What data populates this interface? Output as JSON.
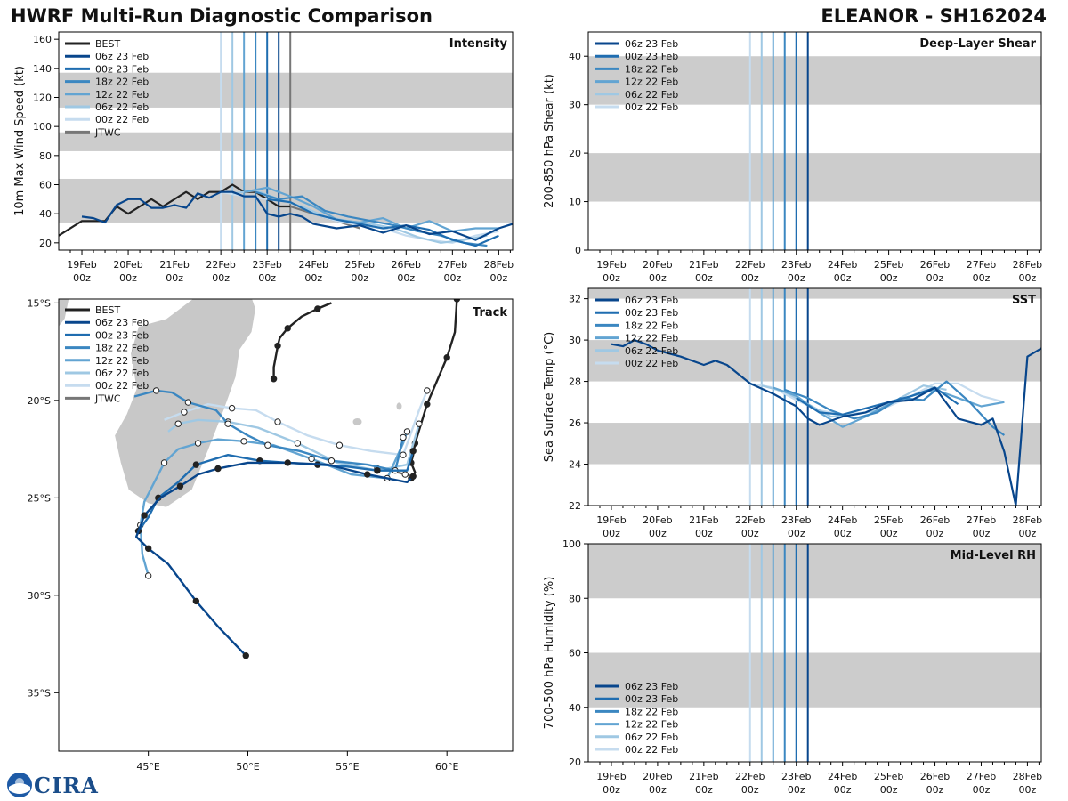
{
  "header": {
    "title": "HWRF Multi-Run Diagnostic Comparison",
    "storm": "ELEANOR - SH162024"
  },
  "colors": {
    "BEST": "#222222",
    "JTWC": "#777777",
    "06z 23 Feb": "#08468c",
    "00z 23 Feb": "#1f6db0",
    "18z 22 Feb": "#3b87c1",
    "12z 22 Feb": "#62a4d2",
    "06z 22 Feb": "#9fc8e3",
    "00z 22 Feb": "#c6dcef",
    "band": "#cccccc",
    "land": "#c8c8c8"
  },
  "time_ticks": [
    "19Feb\n00z",
    "20Feb\n00z",
    "21Feb\n00z",
    "22Feb\n00z",
    "23Feb\n00z",
    "24Feb\n00z",
    "25Feb\n00z",
    "26Feb\n00z",
    "27Feb\n00z",
    "28Feb\n00z"
  ],
  "chart_data": [
    {
      "id": "intensity",
      "type": "line",
      "title": "Intensity",
      "ylabel": "10m Max Wind Speed (kt)",
      "x_unit": "days since 19Feb 00z",
      "xlim": [
        -0.5,
        9.3
      ],
      "ylim": [
        15,
        165
      ],
      "yticks": [
        20,
        40,
        60,
        80,
        100,
        120,
        140,
        160
      ],
      "bands": [
        [
          34,
          64
        ],
        [
          83,
          96
        ],
        [
          113,
          137
        ]
      ],
      "init_lines": [
        3.0,
        3.25,
        3.5,
        3.75,
        4.0,
        4.25,
        4.5
      ],
      "legend": [
        "BEST",
        "06z 23 Feb",
        "00z 23 Feb",
        "18z 22 Feb",
        "12z 22 Feb",
        "06z 22 Feb",
        "00z 22 Feb",
        "JTWC"
      ],
      "series": [
        {
          "name": "BEST",
          "x": [
            -0.5,
            0,
            0.5,
            0.75,
            1,
            1.25,
            1.5,
            1.75,
            2,
            2.25,
            2.5,
            2.75,
            3,
            3.25,
            3.5,
            3.75,
            4,
            4.25,
            4.5
          ],
          "y": [
            25,
            35,
            35,
            45,
            40,
            45,
            50,
            45,
            50,
            55,
            50,
            55,
            55,
            60,
            55,
            55,
            50,
            45,
            45
          ]
        },
        {
          "name": "JTWC",
          "x": [
            4.5,
            5,
            5.5,
            6
          ],
          "y": [
            45,
            40,
            35,
            30
          ]
        },
        {
          "name": "00z 22 Feb",
          "x": [
            3,
            3.5,
            4,
            4.5,
            5,
            5.5,
            6,
            6.5,
            7,
            7.5,
            8,
            8.5,
            9
          ],
          "y": [
            55,
            52,
            50,
            48,
            40,
            35,
            32,
            30,
            25,
            22,
            20,
            25,
            28
          ]
        },
        {
          "name": "06z 22 Feb",
          "x": [
            3.25,
            3.75,
            4.25,
            4.75,
            5.25,
            5.75,
            6.25,
            6.75,
            7.25,
            7.75,
            8.25,
            8.75
          ],
          "y": [
            54,
            56,
            50,
            45,
            38,
            35,
            33,
            30,
            24,
            20,
            22,
            25
          ]
        },
        {
          "name": "12z 22 Feb",
          "x": [
            3.5,
            4,
            4.5,
            5,
            5.5,
            6,
            6.5,
            7,
            7.5,
            8,
            8.5,
            9
          ],
          "y": [
            55,
            58,
            52,
            45,
            36,
            34,
            37,
            30,
            35,
            28,
            30,
            30
          ]
        },
        {
          "name": "18z 22 Feb",
          "x": [
            3.75,
            4.25,
            4.75,
            5.25,
            5.75,
            6.25,
            6.75,
            7.25,
            7.75,
            8.25,
            8.75
          ],
          "y": [
            55,
            50,
            52,
            42,
            38,
            35,
            32,
            28,
            25,
            20,
            18
          ]
        },
        {
          "name": "00z 23 Feb",
          "x": [
            4,
            4.5,
            5,
            5.5,
            6,
            6.5,
            7,
            7.5,
            8,
            8.5,
            9
          ],
          "y": [
            50,
            48,
            40,
            36,
            33,
            30,
            32,
            29,
            22,
            18,
            25
          ]
        },
        {
          "name": "06z 23 Feb",
          "x": [
            0,
            0.25,
            0.5,
            0.75,
            1,
            1.25,
            1.5,
            1.75,
            2,
            2.25,
            2.5,
            2.75,
            3,
            3.25,
            3.5,
            3.75,
            4,
            4.25,
            4.5,
            4.75,
            5,
            5.5,
            6,
            6.5,
            7,
            7.5,
            8,
            8.5,
            9,
            9.3
          ],
          "y": [
            38,
            37,
            34,
            46,
            50,
            50,
            44,
            44,
            46,
            44,
            54,
            51,
            55,
            55,
            52,
            52,
            40,
            38,
            40,
            38,
            33,
            30,
            32,
            27,
            32,
            26,
            28,
            22,
            30,
            33
          ]
        }
      ]
    },
    {
      "id": "shear",
      "type": "line",
      "title": "Deep-Layer Shear",
      "ylabel": "200-850 hPa Shear (kt)",
      "xlim": [
        -0.5,
        9.3
      ],
      "ylim": [
        0,
        45
      ],
      "yticks": [
        0,
        10,
        20,
        30,
        40
      ],
      "bands": [
        [
          10,
          20
        ],
        [
          30,
          40
        ]
      ],
      "init_lines": [
        3.0,
        3.25,
        3.5,
        3.75,
        4.0,
        4.25
      ],
      "legend": [
        "06z 23 Feb",
        "00z 23 Feb",
        "18z 22 Feb",
        "12z 22 Feb",
        "06z 22 Feb",
        "00z 22 Feb"
      ],
      "series": []
    },
    {
      "id": "sst",
      "type": "line",
      "title": "SST",
      "ylabel": "Sea Surface Temp (°C)",
      "xlim": [
        -0.5,
        9.3
      ],
      "ylim": [
        22,
        32.5
      ],
      "yticks": [
        22,
        24,
        26,
        28,
        30,
        32
      ],
      "bands": [
        [
          24,
          26
        ],
        [
          28,
          30
        ],
        [
          32,
          34
        ]
      ],
      "init_lines": [
        3.0,
        3.25,
        3.5,
        3.75,
        4.0,
        4.25
      ],
      "legend": [
        "06z 23 Feb",
        "00z 23 Feb",
        "18z 22 Feb",
        "12z 22 Feb",
        "06z 22 Feb",
        "00z 22 Feb"
      ],
      "series": [
        {
          "name": "00z 22 Feb",
          "x": [
            3,
            3.5,
            4,
            4.5,
            5,
            5.5,
            6,
            6.5,
            7,
            7.5,
            8,
            8.5
          ],
          "y": [
            27.9,
            27.7,
            27.1,
            26.6,
            26.4,
            26.5,
            26.8,
            27.3,
            27.9,
            27.9,
            27.3,
            27.0
          ]
        },
        {
          "name": "06z 22 Feb",
          "x": [
            3.25,
            3.75,
            4.25,
            4.75,
            5.25,
            5.75,
            6.25,
            6.75,
            7.25
          ],
          "y": [
            27.8,
            27.5,
            26.9,
            26.3,
            26.4,
            26.6,
            27.2,
            27.8,
            27.6
          ]
        },
        {
          "name": "12z 22 Feb",
          "x": [
            3.5,
            4,
            4.5,
            5,
            5.5,
            6,
            6.5,
            7,
            7.5,
            8,
            8.5
          ],
          "y": [
            27.7,
            27.3,
            26.5,
            25.8,
            26.3,
            26.9,
            27.3,
            27.6,
            27.2,
            26.8,
            27.0
          ]
        },
        {
          "name": "18z 22 Feb",
          "x": [
            3.75,
            4.25,
            4.75,
            5.25,
            5.75,
            6.25,
            6.75,
            7.25,
            7.75,
            8.25,
            8.5
          ],
          "y": [
            27.6,
            27.2,
            26.6,
            26.2,
            26.5,
            27.2,
            27.1,
            28.0,
            27.0,
            25.8,
            25.4
          ]
        },
        {
          "name": "00z 23 Feb",
          "x": [
            4,
            4.5,
            5,
            5.5,
            6,
            6.5,
            7,
            7.5
          ],
          "y": [
            27.2,
            26.5,
            26.4,
            26.7,
            27.0,
            27.3,
            27.7,
            26.9
          ]
        },
        {
          "name": "06z 23 Feb",
          "x": [
            0,
            0.25,
            0.5,
            0.75,
            1,
            1.5,
            2,
            2.25,
            2.5,
            3,
            3.5,
            4,
            4.25,
            4.5,
            5,
            5.5,
            6,
            6.5,
            7,
            7.5,
            8,
            8.25,
            8.5,
            8.75,
            9,
            9.3
          ],
          "y": [
            29.8,
            29.7,
            30.0,
            29.8,
            29.5,
            29.2,
            28.8,
            29.0,
            28.8,
            27.9,
            27.4,
            26.8,
            26.2,
            25.9,
            26.3,
            26.5,
            27.0,
            27.1,
            27.7,
            26.2,
            25.9,
            26.2,
            24.6,
            22.0,
            29.2,
            29.6
          ]
        }
      ]
    },
    {
      "id": "rh",
      "type": "line",
      "title": "Mid-Level RH",
      "ylabel": "700-500 hPa Humidity (%)",
      "xlim": [
        -0.5,
        9.3
      ],
      "ylim": [
        20,
        100
      ],
      "yticks": [
        20,
        40,
        60,
        80,
        100
      ],
      "bands": [
        [
          40,
          60
        ],
        [
          80,
          100
        ]
      ],
      "init_lines": [
        3.0,
        3.25,
        3.5,
        3.75,
        4.0,
        4.25
      ],
      "legend": [
        "06z 23 Feb",
        "00z 23 Feb",
        "18z 22 Feb",
        "12z 22 Feb",
        "06z 22 Feb",
        "00z 22 Feb"
      ],
      "series": []
    },
    {
      "id": "track",
      "type": "line",
      "title": "Track",
      "xlim": [
        40.5,
        63.3
      ],
      "ylim": [
        -38,
        -14.8
      ],
      "xticks": [
        45,
        50,
        55,
        60
      ],
      "xtick_labels": [
        "45°E",
        "50°E",
        "55°E",
        "60°E"
      ],
      "yticks": [
        -15,
        -20,
        -25,
        -30,
        -35
      ],
      "ytick_labels": [
        "15°S",
        "20°S",
        "25°S",
        "30°S",
        "35°S"
      ],
      "legend": [
        "BEST",
        "06z 23 Feb",
        "00z 23 Feb",
        "18z 22 Feb",
        "12z 22 Feb",
        "06z 22 Feb",
        "00z 22 Feb",
        "JTWC"
      ],
      "series": [
        {
          "name": "BEST",
          "lon": [
            60.5,
            60.4,
            60,
            59.5,
            59,
            58.7,
            58.4,
            58.3,
            58.2,
            58.4,
            58.2,
            58.0
          ],
          "lat": [
            -14.8,
            -16.5,
            -17.8,
            -19.0,
            -20.2,
            -21.2,
            -22.2,
            -22.8,
            -23.2,
            -23.7,
            -24.0,
            -24.2
          ]
        },
        {
          "name": "BEST",
          "lon": [
            51.3,
            51.3,
            51.5,
            51.6,
            52.0,
            52.7,
            53.5,
            54.2
          ],
          "lat": [
            -18.9,
            -18.3,
            -17.2,
            -16.8,
            -16.3,
            -15.7,
            -15.3,
            -15.0
          ]
        },
        {
          "name": "JTWC",
          "lon": [
            56.5,
            57.2,
            57.9,
            58.3
          ],
          "lat": [
            -23.5,
            -23.6,
            -23.8,
            -23.9
          ]
        },
        {
          "name": "06z 23 Feb",
          "lon": [
            58.3,
            58.0,
            56.0,
            54.0,
            52.0,
            50.0,
            48.5,
            47.5,
            46.6,
            45.6,
            44.8,
            44.4,
            45.0,
            46.0,
            47.4,
            48.5,
            49.9
          ],
          "lat": [
            -23.9,
            -24.2,
            -23.8,
            -23.3,
            -23.2,
            -23.2,
            -23.5,
            -23.8,
            -24.4,
            -25.0,
            -25.9,
            -27.0,
            -27.6,
            -28.4,
            -30.3,
            -31.6,
            -33.1
          ]
        },
        {
          "name": "00z 23 Feb",
          "lon": [
            58.3,
            58.0,
            56.5,
            55.0,
            53.5,
            52.0,
            50.6,
            49.0,
            47.4,
            46.5,
            45.5,
            45.0,
            44.5
          ],
          "lat": [
            -22.6,
            -23.6,
            -23.6,
            -23.4,
            -23.3,
            -23.2,
            -23.1,
            -22.8,
            -23.3,
            -24.2,
            -25.0,
            -26.0,
            -26.7
          ]
        },
        {
          "name": "18z 22 Feb",
          "lon": [
            57.8,
            57.6,
            57.4,
            56.0,
            54.2,
            52.6,
            51.0,
            50.0,
            49.0,
            48.4,
            47.0,
            46.2,
            45.4,
            44.3
          ],
          "lat": [
            -21.9,
            -22.8,
            -23.6,
            -23.3,
            -23.1,
            -22.6,
            -22.3,
            -21.8,
            -21.2,
            -20.5,
            -20.1,
            -19.6,
            -19.5,
            -19.8
          ]
        },
        {
          "name": "12z 22 Feb",
          "lon": [
            58.0,
            57.8,
            57.0,
            55.2,
            53.2,
            51.3,
            49.8,
            48.5,
            47.5,
            46.5,
            45.8,
            44.8,
            44.6,
            44.7,
            45.0
          ],
          "lat": [
            -21.6,
            -22.2,
            -24.0,
            -23.8,
            -23.0,
            -22.3,
            -22.1,
            -22.0,
            -22.2,
            -22.5,
            -23.2,
            -25.2,
            -26.4,
            -27.9,
            -29.0
          ]
        },
        {
          "name": "06z 22 Feb",
          "lon": [
            58.6,
            58.0,
            56.5,
            54.5,
            52.5,
            50.5,
            49.0,
            47.5,
            46.5,
            46.0
          ],
          "lat": [
            -21.2,
            -23.3,
            -23.6,
            -23.2,
            -22.2,
            -21.4,
            -21.1,
            -21.0,
            -21.2,
            -21.6
          ]
        },
        {
          "name": "00z 22 Feb",
          "lon": [
            59.0,
            58.6,
            57.8,
            56.2,
            54.6,
            53.0,
            51.5,
            50.4,
            49.2,
            48.0,
            46.8,
            45.8
          ],
          "lat": [
            -19.5,
            -20.5,
            -22.8,
            -22.6,
            -22.3,
            -21.8,
            -21.1,
            -20.5,
            -20.4,
            -20.2,
            -20.6,
            -21.0
          ]
        }
      ]
    }
  ],
  "logo": {
    "text": "CIRA"
  }
}
